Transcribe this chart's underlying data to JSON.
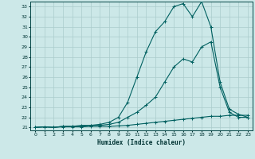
{
  "xlabel": "Humidex (Indice chaleur)",
  "bg_color": "#cce8e8",
  "grid_color": "#aacccc",
  "line_color": "#006060",
  "xlim": [
    -0.5,
    23.5
  ],
  "ylim": [
    20.7,
    33.5
  ],
  "xticks": [
    0,
    1,
    2,
    3,
    4,
    5,
    6,
    7,
    8,
    9,
    10,
    11,
    12,
    13,
    14,
    15,
    16,
    17,
    18,
    19,
    20,
    21,
    22,
    23
  ],
  "yticks": [
    21,
    22,
    23,
    24,
    25,
    26,
    27,
    28,
    29,
    30,
    31,
    32,
    33
  ],
  "series1_x": [
    0,
    1,
    2,
    3,
    4,
    5,
    6,
    7,
    8,
    9,
    10,
    11,
    12,
    13,
    14,
    15,
    16,
    17,
    18,
    19,
    20,
    21,
    22,
    23
  ],
  "series1_y": [
    21.0,
    21.05,
    21.0,
    21.05,
    21.05,
    21.05,
    21.1,
    21.1,
    21.1,
    21.15,
    21.2,
    21.3,
    21.4,
    21.5,
    21.6,
    21.7,
    21.8,
    21.9,
    22.0,
    22.1,
    22.1,
    22.2,
    22.2,
    22.2
  ],
  "series2_x": [
    0,
    1,
    2,
    3,
    4,
    5,
    6,
    7,
    8,
    9,
    10,
    11,
    12,
    13,
    14,
    15,
    16,
    17,
    18,
    19,
    20,
    21,
    22,
    23
  ],
  "series2_y": [
    21.0,
    21.05,
    21.0,
    21.1,
    21.1,
    21.1,
    21.2,
    21.2,
    21.3,
    21.5,
    22.0,
    22.5,
    23.2,
    24.0,
    25.5,
    27.0,
    27.8,
    27.5,
    29.0,
    29.5,
    25.0,
    22.5,
    22.0,
    22.0
  ],
  "series3_x": [
    0,
    1,
    2,
    3,
    4,
    5,
    6,
    7,
    8,
    9,
    10,
    11,
    12,
    13,
    14,
    15,
    16,
    17,
    18,
    19,
    20,
    21,
    22,
    23
  ],
  "series3_y": [
    21.0,
    21.05,
    21.0,
    21.1,
    21.1,
    21.2,
    21.2,
    21.3,
    21.5,
    22.0,
    23.5,
    26.0,
    28.5,
    30.5,
    31.5,
    33.0,
    33.3,
    32.0,
    33.5,
    31.0,
    25.5,
    22.8,
    22.3,
    22.0
  ]
}
